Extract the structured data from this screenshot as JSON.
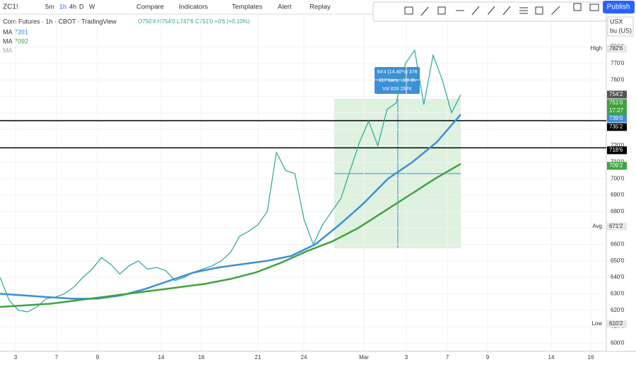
{
  "toolbar": {
    "symbol": "ZC1!",
    "intervals": [
      "5m",
      "1h",
      "4h",
      "D",
      "W"
    ],
    "buttons": [
      "Compare",
      "Indicators",
      "Templates",
      "Alert",
      "Replay"
    ],
    "publish": "Publish"
  },
  "legend": {
    "title": "Corn Futures · 1h · CBOT · TradingView",
    "ohlc": "O750'4 H754'0 L747'6 C751'0 +0'6 (+0.10%)",
    "ma1": "MA",
    "ma1_value": "7391",
    "ma2": "MA",
    "ma2_value": "7092",
    "ma3": "MA"
  },
  "scale": {
    "currency": "USX",
    "unit": "bu (US)"
  },
  "chart_data": {
    "type": "line",
    "ylim": [
      595,
      800
    ],
    "yticks": [
      {
        "value": 600,
        "label": "600'0"
      },
      {
        "value": 610,
        "label": "610'0"
      },
      {
        "value": 620,
        "label": "620'0"
      },
      {
        "value": 630,
        "label": "630'0"
      },
      {
        "value": 640,
        "label": "640'0"
      },
      {
        "value": 650,
        "label": "650'0"
      },
      {
        "value": 660,
        "label": "660'0"
      },
      {
        "value": 670,
        "label": "670'0"
      },
      {
        "value": 680,
        "label": "680'0"
      },
      {
        "value": 690,
        "label": "690'0"
      },
      {
        "value": 700,
        "label": "700'0"
      },
      {
        "value": 710,
        "label": "710'0"
      },
      {
        "value": 720,
        "label": "720'0"
      },
      {
        "value": 730,
        "label": "730'0"
      },
      {
        "value": 740,
        "label": "740'0"
      },
      {
        "value": 750,
        "label": "750'0"
      },
      {
        "value": 760,
        "label": "760'0"
      },
      {
        "value": 770,
        "label": "770'0"
      },
      {
        "value": 780,
        "label": "780'0"
      }
    ],
    "date_labels": [
      "3",
      "7",
      "9",
      "14",
      "16",
      "21",
      "24",
      "Mar",
      "3",
      "7",
      "9",
      "14",
      "16"
    ],
    "series": [
      {
        "name": "Corn Futures",
        "color": "#26a69a",
        "values": [
          640,
          626,
          620,
          619,
          622,
          627,
          628,
          630,
          634,
          640,
          645,
          652,
          648,
          642,
          647,
          650,
          645,
          646,
          644,
          638,
          640,
          643,
          645,
          647,
          650,
          655,
          665,
          668,
          672,
          680,
          716,
          705,
          703,
          675,
          660,
          672,
          680,
          688,
          705,
          722,
          735,
          720,
          742,
          746,
          770,
          778,
          745,
          775,
          760,
          740,
          751
        ]
      },
      {
        "name": "MA",
        "color": "#3d8fd6",
        "values": [
          630,
          629,
          628,
          627,
          627,
          629,
          633,
          638,
          643,
          646,
          648,
          650,
          653,
          660,
          672,
          685,
          700,
          710,
          722,
          739
        ]
      },
      {
        "name": "MA",
        "color": "#3fa33f",
        "values": [
          622,
          623,
          624,
          626,
          628,
          630,
          632,
          634,
          636,
          639,
          643,
          649,
          656,
          662,
          670,
          680,
          690,
          700,
          709
        ]
      }
    ],
    "price_tags": [
      {
        "label": "High",
        "value": "782'6",
        "color": "#e8e8e8",
        "text": "#333"
      },
      {
        "value": "754'2",
        "color": "#555",
        "text": "#fff"
      },
      {
        "value": "751'0",
        "sub": "17:27",
        "color": "#3fa33f",
        "text": "#fff"
      },
      {
        "value": "739'0",
        "color": "#3d8fd6",
        "text": "#fff"
      },
      {
        "value": "735'2",
        "color": "#000",
        "text": "#fff"
      },
      {
        "value": "718'6",
        "color": "#000",
        "text": "#fff"
      },
      {
        "value": "709'2",
        "color": "#3fa33f",
        "text": "#fff"
      },
      {
        "label": "Avg",
        "value": "671'2",
        "color": "#e8e8e8",
        "text": "#333"
      },
      {
        "label": "Low",
        "value": "610'2",
        "color": "#e8e8e8",
        "text": "#333"
      }
    ],
    "hlines": [
      735.25,
      718.75
    ],
    "measure": {
      "line1": "94'4 (14.40%) 378",
      "line2": "117 bars, 10d 3h",
      "line3": "Vol 826.297K"
    }
  }
}
